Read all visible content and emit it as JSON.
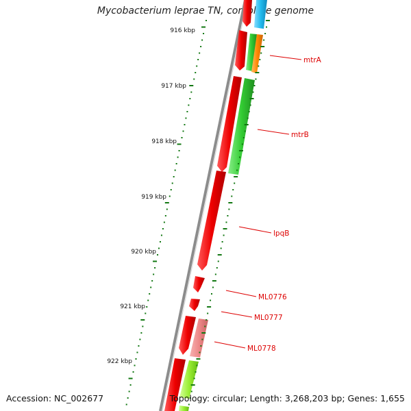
{
  "title": "Mycobacterium leprae TN, complete genome",
  "footer": {
    "accession": "Accession: NC_002677",
    "topology": "Topology: circular; Length: 3,268,203 bp; Genes: 1,655"
  },
  "scale_labels": [
    "916 kbp",
    "917 kbp",
    "918 kbp",
    "919 kbp",
    "920 kbp",
    "921 kbp",
    "922 kbp"
  ],
  "gene_labels": [
    "mtrA",
    "mtrB",
    "lpqB",
    "ML0776",
    "ML0777",
    "ML0778"
  ],
  "colors": {
    "backbone": "#8c8c8c",
    "forward_cds": "#ee0000",
    "green_track": "#33cc33",
    "orange_track": "#ff8800",
    "cyan_track": "#22bbee",
    "pink_track": "#ee8888",
    "lime_track": "#99ee33",
    "ticks": "#117711",
    "label": "#dd0000"
  }
}
